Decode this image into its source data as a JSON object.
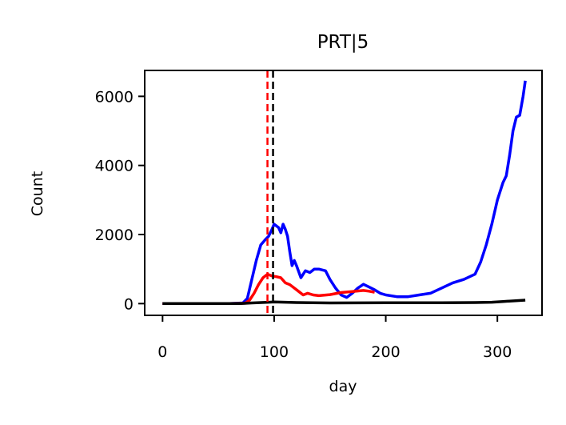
{
  "chart_data": {
    "type": "line",
    "title": "PRT|5",
    "xlabel": "day",
    "ylabel": "Count",
    "xlim": [
      -16,
      340
    ],
    "ylim": [
      -340,
      6750
    ],
    "xticks": [
      0,
      100,
      200,
      300
    ],
    "yticks": [
      0,
      2000,
      4000,
      6000
    ],
    "grid": false,
    "legend": "none",
    "series": [
      {
        "color": "#0000ff",
        "x": [
          0,
          20,
          40,
          60,
          72,
          76,
          80,
          84,
          88,
          92,
          95,
          98,
          100,
          102,
          104,
          106,
          108,
          110,
          112,
          114,
          116,
          118,
          120,
          124,
          128,
          132,
          136,
          140,
          146,
          150,
          155,
          160,
          165,
          170,
          175,
          180,
          185,
          190,
          195,
          200,
          210,
          220,
          230,
          240,
          250,
          260,
          270,
          280,
          285,
          290,
          295,
          300,
          305,
          308,
          311,
          314,
          317,
          320,
          323,
          325
        ],
        "y": [
          0,
          0,
          0,
          0,
          20,
          150,
          700,
          1250,
          1700,
          1850,
          1950,
          2150,
          2300,
          2250,
          2200,
          2050,
          2300,
          2150,
          1950,
          1500,
          1100,
          1250,
          1100,
          750,
          950,
          900,
          1000,
          1000,
          950,
          700,
          450,
          250,
          180,
          300,
          450,
          560,
          480,
          400,
          300,
          250,
          200,
          200,
          250,
          300,
          450,
          600,
          700,
          850,
          1200,
          1700,
          2300,
          3000,
          3500,
          3700,
          4300,
          5000,
          5400,
          5450,
          6000,
          6450
        ]
      },
      {
        "color": "#ff0000",
        "x": [
          0,
          20,
          40,
          60,
          74,
          78,
          82,
          86,
          90,
          94,
          98,
          102,
          106,
          110,
          114,
          118,
          122,
          126,
          130,
          135,
          140,
          150,
          160,
          170,
          180,
          185,
          190
        ],
        "y": [
          0,
          0,
          0,
          0,
          10,
          100,
          300,
          550,
          750,
          850,
          800,
          780,
          750,
          600,
          550,
          450,
          350,
          250,
          300,
          250,
          230,
          260,
          320,
          350,
          380,
          360,
          330
        ]
      },
      {
        "color": "#000000",
        "x": [
          0,
          40,
          70,
          80,
          95,
          100,
          120,
          150,
          200,
          250,
          280,
          295,
          305,
          315,
          325
        ],
        "y": [
          0,
          0,
          0,
          20,
          40,
          50,
          30,
          20,
          25,
          25,
          30,
          40,
          60,
          80,
          100
        ]
      }
    ],
    "vlines": [
      {
        "x": 94,
        "color": "#ff0000",
        "style": "dashed"
      },
      {
        "x": 99,
        "color": "#000000",
        "style": "dashed"
      }
    ]
  }
}
